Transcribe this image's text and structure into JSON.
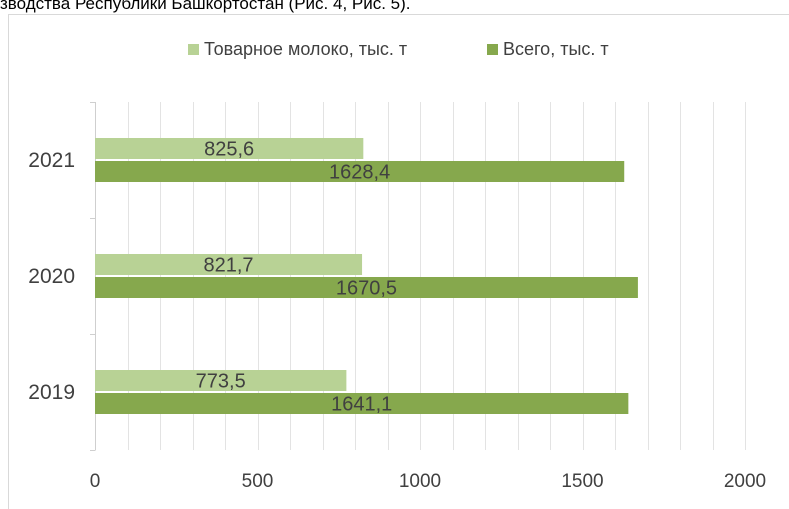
{
  "page_text": "зводства Республики Башкортостан (Рис. 4, Рис. 5).",
  "chart_data": {
    "type": "bar",
    "orientation": "horizontal",
    "categories": [
      "2019",
      "2020",
      "2021"
    ],
    "series": [
      {
        "name": "Товарное молоко, тыс. т",
        "values": [
          773.5,
          821.7,
          825.6
        ],
        "labels": [
          "773,5",
          "821,7",
          "825,6"
        ],
        "color": "#b8d295"
      },
      {
        "name": "Всего, тыс. т",
        "values": [
          1641.1,
          1670.5,
          1628.4
        ],
        "labels": [
          "1641,1",
          "1670,5",
          "1628,4"
        ],
        "color": "#86a84d"
      }
    ],
    "xlim": [
      0,
      2000
    ],
    "x_ticks": [
      "0",
      "500",
      "1000",
      "1500",
      "2000"
    ],
    "grid": "vertical-minor",
    "legend_position": "top",
    "gridline_color": "#e3e3e3",
    "text_color": "#404040"
  }
}
